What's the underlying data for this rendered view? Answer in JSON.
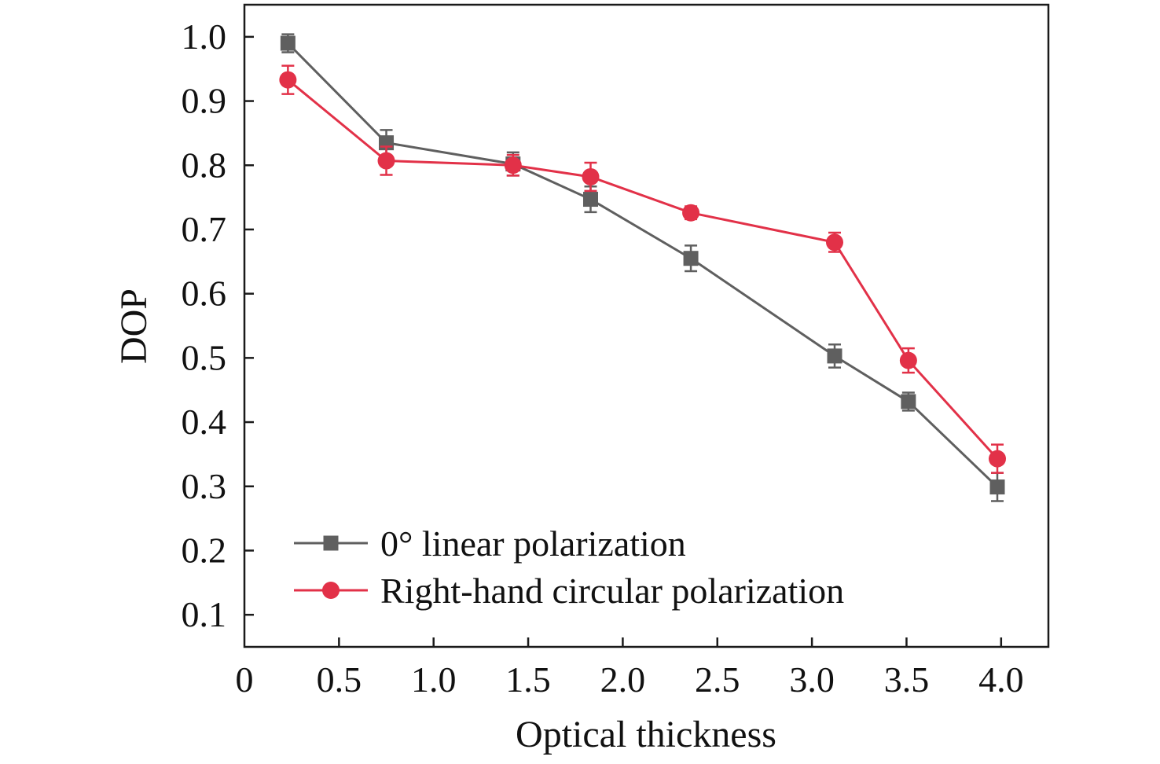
{
  "chart_data": {
    "type": "line",
    "title": "",
    "xlabel": "Optical thickness",
    "ylabel": "DOP",
    "xlim": [
      0,
      4.25
    ],
    "ylim": [
      0.05,
      1.05
    ],
    "x_ticks": [
      0,
      0.5,
      1.0,
      1.5,
      2.0,
      2.5,
      3.0,
      3.5,
      4.0
    ],
    "x_tick_labels": [
      "0",
      "0.5",
      "1.0",
      "1.5",
      "2.0",
      "2.5",
      "3.0",
      "3.5",
      "4.0"
    ],
    "y_ticks": [
      0.1,
      0.2,
      0.3,
      0.4,
      0.5,
      0.6,
      0.7,
      0.8,
      0.9,
      1.0
    ],
    "y_tick_labels": [
      "0.1",
      "0.2",
      "0.3",
      "0.4",
      "0.5",
      "0.6",
      "0.7",
      "0.8",
      "0.9",
      "1.0"
    ],
    "grid": false,
    "legend_position": "lower-left",
    "series": [
      {
        "name": "0° linear polarization",
        "color": "#5f5f5f",
        "marker": "square",
        "x": [
          0.23,
          0.75,
          1.42,
          1.83,
          2.36,
          3.12,
          3.51,
          3.98
        ],
        "y": [
          0.99,
          0.835,
          0.802,
          0.747,
          0.655,
          0.503,
          0.432,
          0.299
        ],
        "error": [
          0.014,
          0.02,
          0.018,
          0.02,
          0.02,
          0.018,
          0.014,
          0.022
        ]
      },
      {
        "name": "Right-hand circular polarization",
        "color": "#e23148",
        "marker": "circle",
        "x": [
          0.23,
          0.75,
          1.42,
          1.83,
          2.36,
          3.12,
          3.51,
          3.98
        ],
        "y": [
          0.933,
          0.807,
          0.8,
          0.782,
          0.726,
          0.68,
          0.496,
          0.343
        ],
        "error": [
          0.022,
          0.022,
          0.016,
          0.022,
          0.01,
          0.015,
          0.019,
          0.022
        ]
      }
    ]
  }
}
